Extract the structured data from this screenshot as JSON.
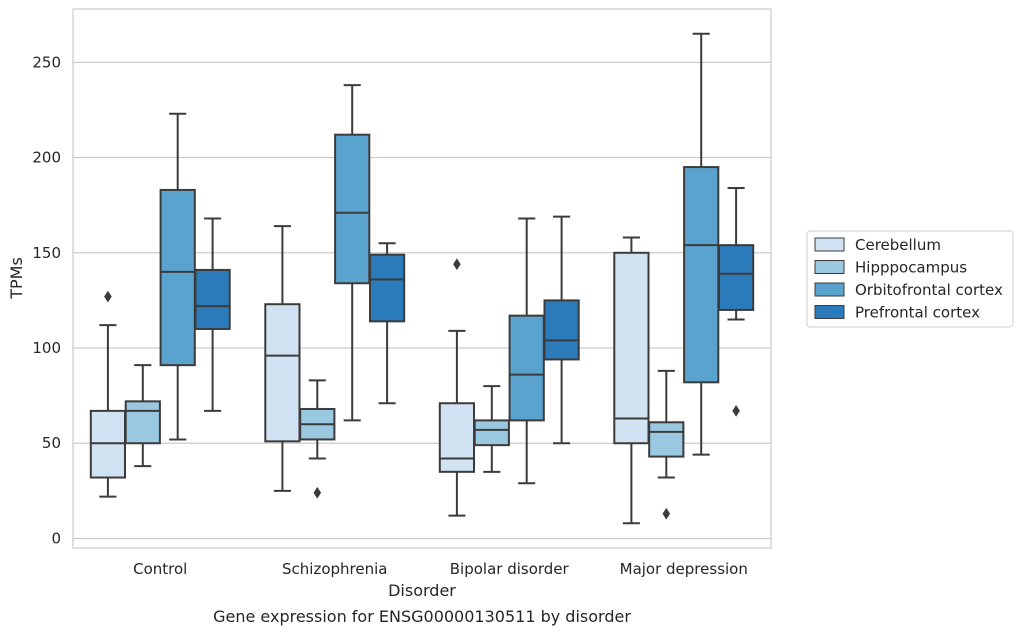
{
  "chart_data": {
    "type": "box",
    "title": "",
    "caption": "Gene expression for ENSG00000130511 by disorder",
    "xlabel": "Disorder",
    "ylabel": "TPMs",
    "ylim": [
      -5,
      278
    ],
    "yticks": [
      0,
      50,
      100,
      150,
      200,
      250
    ],
    "grid": "horizontal",
    "legend_position": "right",
    "categories": [
      "Control",
      "Schizophrenia",
      "Bipolar disorder",
      "Major depression"
    ],
    "series": [
      {
        "name": "Cerebellum",
        "color": "#d1e2f2",
        "boxes": [
          {
            "whisker_low": 22,
            "q1": 32,
            "median": 50,
            "q3": 67,
            "whisker_high": 112,
            "outliers": [
              127
            ]
          },
          {
            "whisker_low": 25,
            "q1": 51,
            "median": 96,
            "q3": 123,
            "whisker_high": 164,
            "outliers": []
          },
          {
            "whisker_low": 12,
            "q1": 35,
            "median": 42,
            "q3": 71,
            "whisker_high": 109,
            "outliers": [
              144
            ]
          },
          {
            "whisker_low": 8,
            "q1": 50,
            "median": 63,
            "q3": 150,
            "whisker_high": 158,
            "outliers": []
          }
        ]
      },
      {
        "name": "Hipppocampus",
        "color": "#9ac8e0",
        "boxes": [
          {
            "whisker_low": 38,
            "q1": 50,
            "median": 67,
            "q3": 72,
            "whisker_high": 91,
            "outliers": []
          },
          {
            "whisker_low": 42,
            "q1": 52,
            "median": 60,
            "q3": 68,
            "whisker_high": 83,
            "outliers": [
              24
            ]
          },
          {
            "whisker_low": 35,
            "q1": 49,
            "median": 57,
            "q3": 62,
            "whisker_high": 80,
            "outliers": []
          },
          {
            "whisker_low": 32,
            "q1": 43,
            "median": 56,
            "q3": 61,
            "whisker_high": 88,
            "outliers": [
              13
            ]
          }
        ]
      },
      {
        "name": "Orbitofrontal cortex",
        "color": "#5ba3cf",
        "boxes": [
          {
            "whisker_low": 52,
            "q1": 91,
            "median": 140,
            "q3": 183,
            "whisker_high": 223,
            "outliers": []
          },
          {
            "whisker_low": 62,
            "q1": 134,
            "median": 171,
            "q3": 212,
            "whisker_high": 238,
            "outliers": []
          },
          {
            "whisker_low": 29,
            "q1": 62,
            "median": 86,
            "q3": 117,
            "whisker_high": 168,
            "outliers": []
          },
          {
            "whisker_low": 44,
            "q1": 82,
            "median": 154,
            "q3": 195,
            "whisker_high": 265,
            "outliers": []
          }
        ]
      },
      {
        "name": "Prefrontal cortex",
        "color": "#2b7bba",
        "boxes": [
          {
            "whisker_low": 67,
            "q1": 110,
            "median": 122,
            "q3": 141,
            "whisker_high": 168,
            "outliers": []
          },
          {
            "whisker_low": 71,
            "q1": 114,
            "median": 136,
            "q3": 149,
            "whisker_high": 155,
            "outliers": []
          },
          {
            "whisker_low": 50,
            "q1": 94,
            "median": 104,
            "q3": 125,
            "whisker_high": 169,
            "outliers": []
          },
          {
            "whisker_low": 115,
            "q1": 120,
            "median": 139,
            "q3": 154,
            "whisker_high": 184,
            "outliers": [
              67
            ]
          }
        ]
      }
    ]
  }
}
